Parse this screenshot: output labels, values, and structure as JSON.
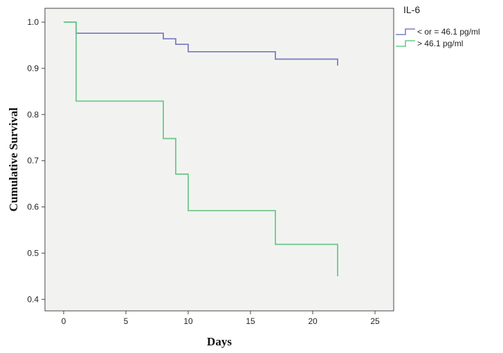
{
  "chart_data": {
    "type": "line",
    "step": true,
    "xlabel": "Days",
    "ylabel": "Cumulative Survival",
    "xlim": [
      -1.5,
      26.5
    ],
    "ylim": [
      0.375,
      1.03
    ],
    "xticks": [
      0,
      5,
      10,
      15,
      20,
      25
    ],
    "yticks": [
      0.4,
      0.5,
      0.6,
      0.7,
      0.8,
      0.9,
      1.0
    ],
    "xtick_labels": [
      "0",
      "5",
      "10",
      "15",
      "20",
      "25"
    ],
    "ytick_labels": [
      "0.4",
      "0.5",
      "0.6",
      "0.7",
      "0.8",
      "0.9",
      "1.0"
    ],
    "grid": false,
    "plot_background": "#f2f3f1",
    "legend": {
      "title": "IL-6",
      "placement": "top-right-outside"
    },
    "series": [
      {
        "name": "< or = 46.1 pg/ml",
        "color": "#7b7fc2",
        "points": [
          [
            0,
            1.0
          ],
          [
            1,
            0.976
          ],
          [
            8,
            0.964
          ],
          [
            9,
            0.952
          ],
          [
            10,
            0.936
          ],
          [
            17,
            0.92
          ],
          [
            22,
            0.906
          ]
        ]
      },
      {
        "name": "> 46.1 pg/ml",
        "color": "#6cc98a",
        "points": [
          [
            0,
            1.0
          ],
          [
            1,
            0.829
          ],
          [
            8,
            0.748
          ],
          [
            9,
            0.671
          ],
          [
            10,
            0.592
          ],
          [
            17,
            0.519
          ],
          [
            22,
            0.45
          ]
        ]
      }
    ]
  }
}
